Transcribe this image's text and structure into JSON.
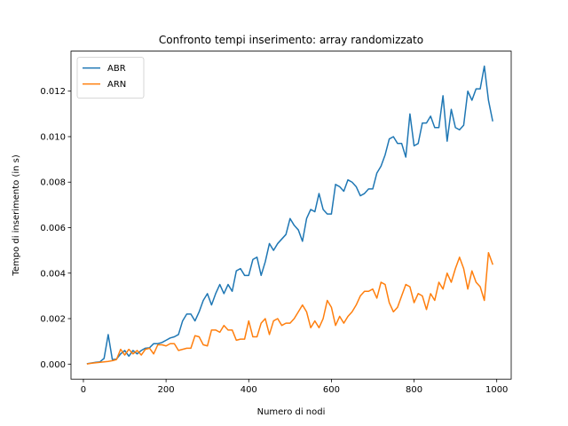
{
  "chart_data": {
    "type": "line",
    "title": "Confronto tempi inserimento: array randomizzato",
    "xlabel": "Numero di nodi",
    "ylabel": "Tempo di inserimento (in s)",
    "xlim": [
      -30,
      1035
    ],
    "ylim": [
      -0.00066,
      0.01376
    ],
    "xticks": [
      0,
      200,
      400,
      600,
      800,
      1000
    ],
    "yticks": [
      0.0,
      0.002,
      0.004,
      0.006,
      0.008,
      0.01,
      0.012
    ],
    "xtick_labels": [
      "0",
      "200",
      "400",
      "600",
      "800",
      "1000"
    ],
    "ytick_labels": [
      "0.000",
      "0.002",
      "0.004",
      "0.006",
      "0.008",
      "0.010",
      "0.012"
    ],
    "legend_position": "upper-left",
    "grid": false,
    "x": [
      10,
      20,
      30,
      40,
      50,
      60,
      70,
      80,
      90,
      100,
      110,
      120,
      130,
      140,
      150,
      160,
      170,
      180,
      190,
      200,
      210,
      220,
      230,
      240,
      250,
      260,
      270,
      280,
      290,
      300,
      310,
      320,
      330,
      340,
      350,
      360,
      370,
      380,
      390,
      400,
      410,
      420,
      430,
      440,
      450,
      460,
      470,
      480,
      490,
      500,
      510,
      520,
      530,
      540,
      550,
      560,
      570,
      580,
      590,
      600,
      610,
      620,
      630,
      640,
      650,
      660,
      670,
      680,
      690,
      700,
      710,
      720,
      730,
      740,
      750,
      760,
      770,
      780,
      790,
      800,
      810,
      820,
      830,
      840,
      850,
      860,
      870,
      880,
      890,
      900,
      910,
      920,
      930,
      940,
      950,
      960,
      970,
      980,
      990
    ],
    "series": [
      {
        "name": "ABR",
        "color": "#1f77b4",
        "values": [
          2e-05,
          5e-05,
          8e-05,
          0.0001,
          0.00025,
          0.0013,
          0.0002,
          0.00022,
          0.00045,
          0.0006,
          0.00035,
          0.0006,
          0.00045,
          0.0006,
          0.0007,
          0.00072,
          0.0009,
          0.0009,
          0.00095,
          0.00105,
          0.00115,
          0.0012,
          0.0013,
          0.0019,
          0.0022,
          0.0022,
          0.0019,
          0.0023,
          0.0028,
          0.0031,
          0.0026,
          0.0031,
          0.0035,
          0.0031,
          0.0035,
          0.0032,
          0.0041,
          0.0042,
          0.0039,
          0.0039,
          0.0046,
          0.0047,
          0.0039,
          0.0045,
          0.0053,
          0.005,
          0.0053,
          0.0055,
          0.0057,
          0.0064,
          0.0061,
          0.0059,
          0.0054,
          0.0064,
          0.0068,
          0.0067,
          0.0075,
          0.0068,
          0.0066,
          0.0066,
          0.0079,
          0.0078,
          0.0076,
          0.0081,
          0.008,
          0.0078,
          0.0074,
          0.0075,
          0.0077,
          0.0077,
          0.0084,
          0.0087,
          0.0092,
          0.0099,
          0.01,
          0.0097,
          0.0097,
          0.0091,
          0.011,
          0.0096,
          0.0097,
          0.0106,
          0.0106,
          0.0109,
          0.0104,
          0.0104,
          0.0118,
          0.0098,
          0.0112,
          0.0104,
          0.0103,
          0.0105,
          0.012,
          0.0116,
          0.0121,
          0.0121,
          0.0131,
          0.0116,
          0.0107
        ]
      },
      {
        "name": "ARN",
        "color": "#ff7f0e",
        "values": [
          1e-05,
          4e-05,
          6e-05,
          8e-05,
          0.0001,
          0.00012,
          0.00015,
          0.0002,
          0.00065,
          0.0004,
          0.00065,
          0.00045,
          0.0006,
          0.0004,
          0.00065,
          0.0007,
          0.00045,
          0.00085,
          0.00085,
          0.0008,
          0.0009,
          0.0009,
          0.0006,
          0.00065,
          0.0007,
          0.0007,
          0.00125,
          0.0012,
          0.00085,
          0.0008,
          0.0015,
          0.0015,
          0.0014,
          0.0017,
          0.0015,
          0.0015,
          0.00105,
          0.0011,
          0.0011,
          0.0019,
          0.0012,
          0.0012,
          0.0018,
          0.002,
          0.0013,
          0.0019,
          0.002,
          0.0017,
          0.0018,
          0.0018,
          0.002,
          0.0023,
          0.0026,
          0.0023,
          0.0016,
          0.0019,
          0.0016,
          0.002,
          0.0028,
          0.0025,
          0.0017,
          0.0021,
          0.0018,
          0.0021,
          0.0023,
          0.0026,
          0.003,
          0.0032,
          0.0032,
          0.0033,
          0.0029,
          0.0036,
          0.0035,
          0.0027,
          0.0023,
          0.0025,
          0.003,
          0.0035,
          0.0034,
          0.0027,
          0.0031,
          0.003,
          0.0024,
          0.0031,
          0.0028,
          0.0036,
          0.0033,
          0.004,
          0.0036,
          0.0042,
          0.0047,
          0.0042,
          0.0033,
          0.0041,
          0.0036,
          0.0034,
          0.0028,
          0.0049,
          0.0044
        ]
      }
    ]
  }
}
